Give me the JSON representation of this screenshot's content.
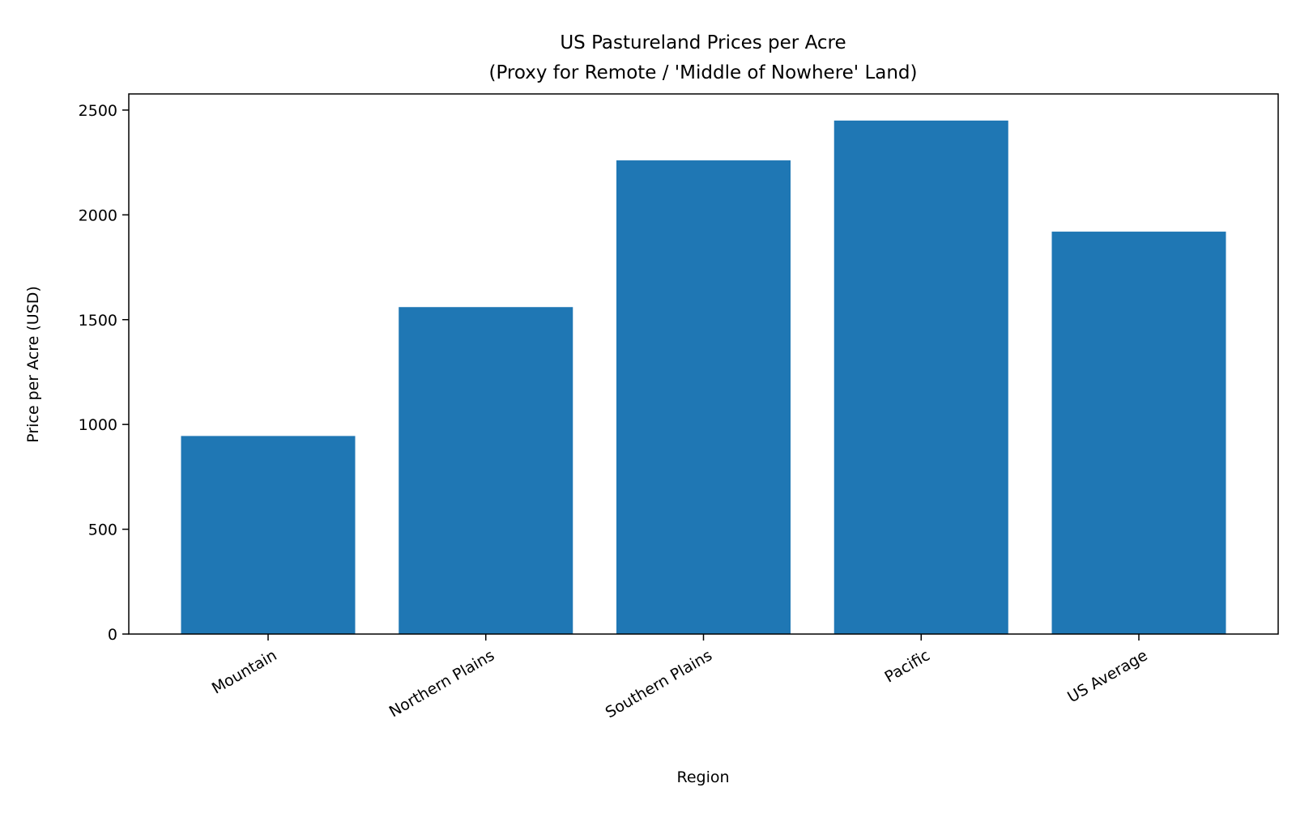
{
  "chart_data": {
    "type": "bar",
    "title": "US Pastureland Prices per Acre",
    "subtitle": "(Proxy for Remote / 'Middle of Nowhere' Land)",
    "xlabel": "Region",
    "ylabel": "Price per Acre (USD)",
    "categories": [
      "Mountain",
      "Northern Plains",
      "Southern Plains",
      "Pacific",
      "US Average"
    ],
    "values": [
      945,
      1560,
      2260,
      2450,
      1920
    ],
    "ylim": [
      0,
      2577
    ],
    "yticks": [
      0,
      500,
      1000,
      1500,
      2000,
      2500
    ],
    "ytick_labels": [
      "0",
      "500",
      "1000",
      "1500",
      "2000",
      "2500"
    ],
    "grid": false,
    "bar_color": "#1f77b4"
  }
}
